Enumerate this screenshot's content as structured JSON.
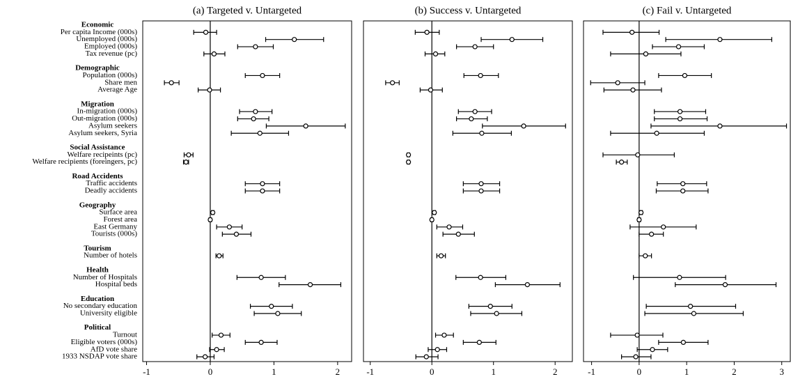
{
  "chart_data": [
    {
      "type": "errorbar",
      "title": "(a) Targeted v. Untargeted",
      "groups": [
        {
          "name": "Economic",
          "categories": [
            "Per capita Income (000s)",
            "Unemployed (000s)",
            "Employed (000s)",
            "Tax revenue (pc)"
          ]
        },
        {
          "name": "Demographic",
          "categories": [
            "Population (000s)",
            "Share men",
            "Average Age"
          ]
        },
        {
          "name": "Migration",
          "categories": [
            "In-migration (000s)",
            "Out-migration (000s)",
            "Asylum seekers",
            "Asylum seekers, Syria"
          ]
        },
        {
          "name": "Social Assistance",
          "categories": [
            "Welfare recipeints (pc)",
            "Welfare recipients (foreingers, pc)"
          ]
        },
        {
          "name": "Road Accidents",
          "categories": [
            "Traffic accidents",
            "Deadly accidents"
          ]
        },
        {
          "name": "Geography",
          "categories": [
            "Surface area",
            "Forest area",
            "East Germany",
            "Tourists (000s)"
          ]
        },
        {
          "name": "Tourism",
          "categories": [
            "Number of hotels"
          ]
        },
        {
          "name": "Health",
          "categories": [
            "Number of Hospitals",
            "Hospital beds"
          ]
        },
        {
          "name": "Education",
          "categories": [
            "No secondary education",
            "University eligible"
          ]
        },
        {
          "name": "Political",
          "categories": [
            "Turnout",
            "Eligible voters (000s)",
            "AfD vote share",
            "1933 NSDAP vote share"
          ]
        }
      ],
      "values": [
        -0.07,
        1.32,
        0.71,
        0.06,
        0.82,
        -0.61,
        -0.01,
        0.71,
        0.68,
        1.5,
        0.78,
        -0.34,
        -0.38,
        0.82,
        0.82,
        0.04,
        0.0,
        0.3,
        0.41,
        0.14,
        0.8,
        1.57,
        0.96,
        1.06,
        0.17,
        0.8,
        0.1,
        -0.08
      ],
      "ci_low": [
        -0.26,
        0.87,
        0.43,
        -0.1,
        0.55,
        -0.72,
        -0.19,
        0.46,
        0.43,
        0.88,
        0.33,
        -0.41,
        -0.42,
        0.55,
        0.55,
        0.02,
        -0.02,
        0.1,
        0.19,
        0.09,
        0.42,
        1.08,
        0.63,
        0.69,
        0.03,
        0.55,
        -0.01,
        -0.21
      ],
      "ci_high": [
        0.1,
        1.78,
        0.99,
        0.23,
        1.09,
        -0.49,
        0.16,
        0.97,
        0.92,
        2.12,
        1.23,
        -0.27,
        -0.34,
        1.09,
        1.09,
        0.06,
        0.02,
        0.5,
        0.64,
        0.2,
        1.18,
        2.05,
        1.29,
        1.43,
        0.31,
        1.05,
        0.22,
        0.06
      ],
      "xlim": [
        -1.06,
        2.22
      ],
      "xticks": [
        -1,
        0,
        1,
        2
      ]
    },
    {
      "type": "errorbar",
      "title": "(b) Success v. Untargeted",
      "values": [
        -0.08,
        1.3,
        0.7,
        0.06,
        0.79,
        -0.64,
        -0.02,
        0.7,
        0.64,
        1.49,
        0.81,
        -0.38,
        -0.38,
        0.8,
        0.8,
        0.04,
        0.0,
        0.28,
        0.43,
        0.15,
        0.79,
        1.55,
        0.95,
        1.05,
        0.2,
        0.77,
        0.09,
        -0.09
      ],
      "ci_low": [
        -0.27,
        0.8,
        0.4,
        -0.11,
        0.52,
        -0.75,
        -0.19,
        0.43,
        0.4,
        0.82,
        0.34,
        -0.4,
        -0.4,
        0.51,
        0.51,
        0.02,
        -0.02,
        0.08,
        0.18,
        0.08,
        0.39,
        1.03,
        0.6,
        0.63,
        0.06,
        0.51,
        -0.06,
        -0.26
      ],
      "ci_high": [
        0.12,
        1.8,
        1.0,
        0.21,
        1.08,
        -0.53,
        0.17,
        0.97,
        0.9,
        2.17,
        1.29,
        -0.36,
        -0.36,
        1.1,
        1.1,
        0.06,
        0.02,
        0.5,
        0.69,
        0.22,
        1.2,
        2.08,
        1.3,
        1.46,
        0.35,
        1.04,
        0.24,
        0.1
      ],
      "xlim": [
        -1.11,
        2.28
      ],
      "xticks": [
        -1,
        0,
        1,
        2
      ]
    },
    {
      "type": "errorbar",
      "title": "(c) Fail v. Untargeted",
      "values": [
        -0.15,
        1.7,
        0.83,
        0.14,
        0.96,
        -0.45,
        -0.13,
        0.86,
        0.86,
        1.7,
        0.37,
        -0.03,
        -0.37,
        0.92,
        0.92,
        0.04,
        0.0,
        0.51,
        0.26,
        0.13,
        0.85,
        1.81,
        1.08,
        1.15,
        -0.04,
        0.93,
        0.28,
        -0.07
      ],
      "ci_low": [
        -0.76,
        0.56,
        0.28,
        -0.6,
        0.41,
        -1.02,
        -0.74,
        0.32,
        0.32,
        0.25,
        -0.6,
        -0.76,
        -0.48,
        0.38,
        0.36,
        0.02,
        -0.03,
        -0.19,
        0.0,
        0.0,
        -0.12,
        0.76,
        0.15,
        0.12,
        -0.6,
        0.41,
        -0.04,
        -0.37
      ],
      "ci_high": [
        0.42,
        2.79,
        1.37,
        0.88,
        1.52,
        0.12,
        0.47,
        1.4,
        1.43,
        3.1,
        1.37,
        0.74,
        -0.25,
        1.42,
        1.45,
        0.07,
        0.03,
        1.2,
        0.51,
        0.26,
        1.82,
        2.88,
        2.03,
        2.19,
        0.5,
        1.45,
        0.6,
        0.25
      ],
      "xlim": [
        -1.17,
        3.18
      ],
      "xticks": [
        -1,
        0,
        1,
        2,
        3
      ]
    }
  ]
}
